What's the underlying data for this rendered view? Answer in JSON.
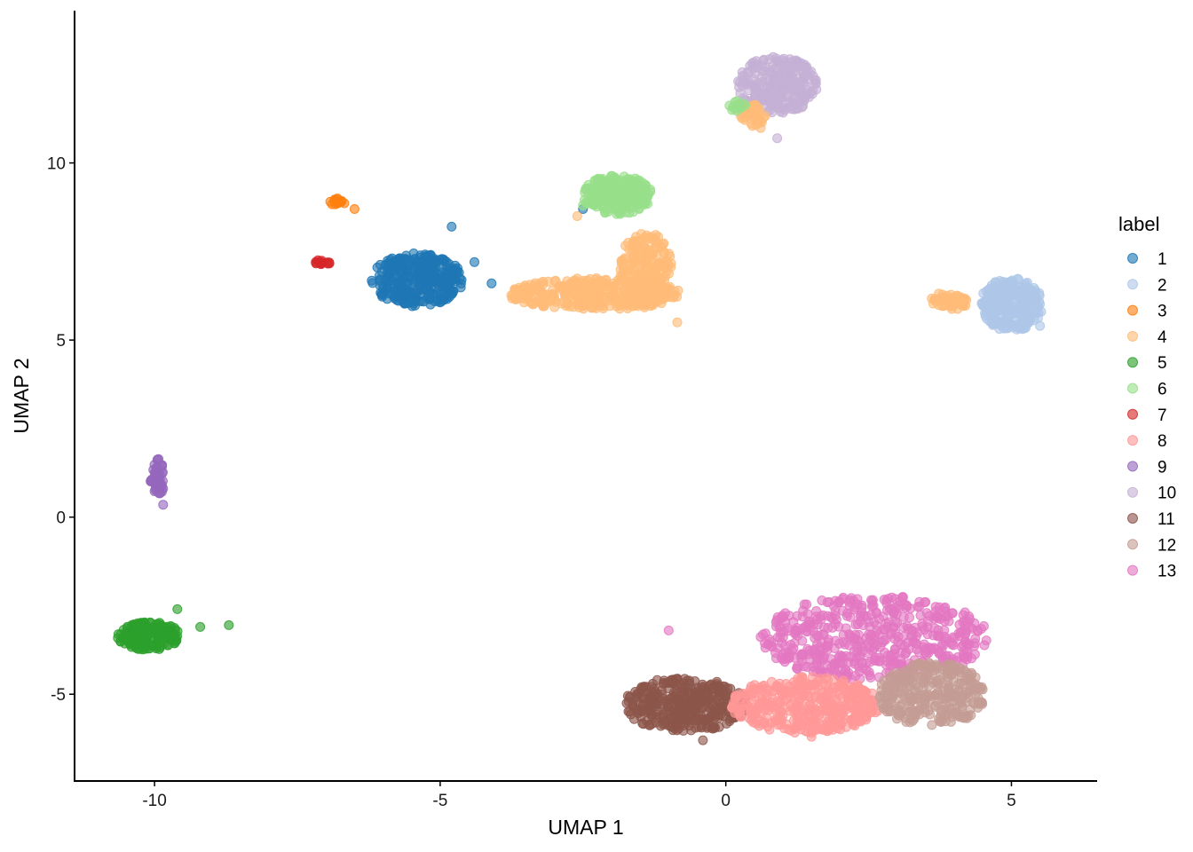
{
  "chart_data": {
    "type": "scatter",
    "xlabel": "UMAP 1",
    "ylabel": "UMAP 2",
    "xlim": [
      -11.4,
      6.5
    ],
    "ylim": [
      -7.45,
      14.3
    ],
    "x_ticks": [
      -10,
      -5,
      0,
      5
    ],
    "y_ticks": [
      -5,
      0,
      5,
      10
    ],
    "x_tick_labels": [
      "-10",
      "-5",
      "0",
      "5"
    ],
    "y_tick_labels": [
      "-5",
      "0",
      "5",
      "10"
    ],
    "grid": false,
    "legend": {
      "title": "label",
      "placement": "right",
      "entries": [
        {
          "name": "1",
          "color": "#1f77b4"
        },
        {
          "name": "2",
          "color": "#aec7e8"
        },
        {
          "name": "3",
          "color": "#ff7f0e"
        },
        {
          "name": "4",
          "color": "#ffbb78"
        },
        {
          "name": "5",
          "color": "#2ca02c"
        },
        {
          "name": "6",
          "color": "#98df8a"
        },
        {
          "name": "7",
          "color": "#d62728"
        },
        {
          "name": "8",
          "color": "#ff9896"
        },
        {
          "name": "9",
          "color": "#9467bd"
        },
        {
          "name": "10",
          "color": "#c5b0d5"
        },
        {
          "name": "11",
          "color": "#8c564b"
        },
        {
          "name": "12",
          "color": "#c49c94"
        },
        {
          "name": "13",
          "color": "#e377c2"
        }
      ]
    },
    "clusters": [
      {
        "label": "13",
        "cx": 2.6,
        "cy": -3.4,
        "rx": 2.0,
        "ry": 1.2,
        "n": 520,
        "extra": [
          [
            -1.0,
            -3.2
          ]
        ]
      },
      {
        "label": "11",
        "cx": -0.7,
        "cy": -5.3,
        "rx": 1.1,
        "ry": 0.75,
        "n": 380,
        "extra": [
          [
            -0.4,
            -6.3
          ],
          [
            -1.2,
            -4.6
          ]
        ]
      },
      {
        "label": "8",
        "cx": 1.4,
        "cy": -5.3,
        "rx": 1.3,
        "ry": 0.8,
        "n": 380,
        "extra": [
          [
            1.5,
            -6.2
          ]
        ]
      },
      {
        "label": "12",
        "cx": 3.6,
        "cy": -5.0,
        "rx": 0.95,
        "ry": 0.9,
        "n": 300,
        "extra": [
          [
            4.3,
            -4.4
          ]
        ]
      },
      {
        "label": "5",
        "cx": -10.1,
        "cy": -3.35,
        "rx": 0.55,
        "ry": 0.4,
        "n": 160,
        "extra": [
          [
            -9.2,
            -3.1
          ],
          [
            -8.7,
            -3.05
          ],
          [
            -9.6,
            -2.6
          ]
        ]
      },
      {
        "label": "9",
        "cx": -9.95,
        "cy": 1.1,
        "rx": 0.12,
        "ry": 0.55,
        "n": 45,
        "extra": [
          [
            -9.85,
            0.35
          ]
        ]
      },
      {
        "label": "3",
        "cx": -6.8,
        "cy": 8.9,
        "rx": 0.15,
        "ry": 0.1,
        "n": 14,
        "extra": [
          [
            -6.5,
            8.7
          ]
        ]
      },
      {
        "label": "7",
        "cx": -7.05,
        "cy": 7.2,
        "rx": 0.15,
        "ry": 0.08,
        "n": 14,
        "extra": []
      },
      {
        "label": "1",
        "cx": -5.4,
        "cy": 6.7,
        "rx": 0.8,
        "ry": 0.75,
        "n": 330,
        "extra": [
          [
            -4.8,
            8.2
          ],
          [
            -4.4,
            7.2
          ],
          [
            -2.5,
            8.7
          ],
          [
            -4.1,
            6.6
          ]
        ]
      },
      {
        "label": "4",
        "cx": -2.3,
        "cy": 6.3,
        "rx": 1.5,
        "ry": 0.45,
        "n": 330,
        "extra": [
          [
            -0.85,
            5.5
          ],
          [
            -1.4,
            7.8
          ],
          [
            -2.6,
            8.5
          ]
        ]
      },
      {
        "label": "4",
        "cx": -1.4,
        "cy": 7.0,
        "rx": 0.45,
        "ry": 1.1,
        "n": 200,
        "extra": []
      },
      {
        "label": "6",
        "cx": -1.9,
        "cy": 9.1,
        "rx": 0.6,
        "ry": 0.55,
        "n": 220,
        "extra": [
          [
            -2.5,
            8.8
          ]
        ]
      },
      {
        "label": "10",
        "cx": 0.9,
        "cy": 12.2,
        "rx": 0.7,
        "ry": 0.8,
        "n": 240,
        "extra": [
          [
            0.9,
            10.7
          ]
        ]
      },
      {
        "label": "4",
        "cx": 0.5,
        "cy": 11.3,
        "rx": 0.25,
        "ry": 0.35,
        "n": 40,
        "extra": []
      },
      {
        "label": "6",
        "cx": 0.2,
        "cy": 11.6,
        "rx": 0.15,
        "ry": 0.15,
        "n": 16,
        "extra": []
      },
      {
        "label": "2",
        "cx": 5.0,
        "cy": 6.0,
        "rx": 0.55,
        "ry": 0.75,
        "n": 300,
        "extra": [
          [
            5.5,
            5.4
          ]
        ]
      },
      {
        "label": "4",
        "cx": 3.9,
        "cy": 6.1,
        "rx": 0.35,
        "ry": 0.25,
        "n": 50,
        "extra": []
      }
    ]
  }
}
